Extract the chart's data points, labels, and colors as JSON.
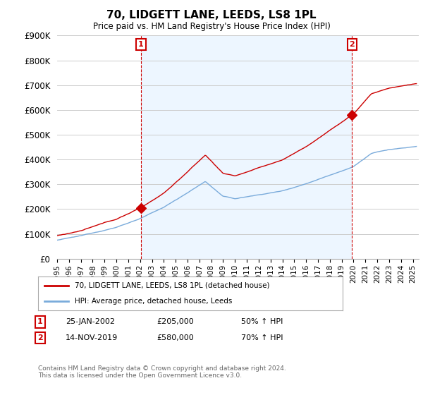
{
  "title": "70, LIDGETT LANE, LEEDS, LS8 1PL",
  "subtitle": "Price paid vs. HM Land Registry's House Price Index (HPI)",
  "ylabel_ticks": [
    "£0",
    "£100K",
    "£200K",
    "£300K",
    "£400K",
    "£500K",
    "£600K",
    "£700K",
    "£800K",
    "£900K"
  ],
  "ylim": [
    0,
    900000
  ],
  "xlim_start": 1995.0,
  "xlim_end": 2025.5,
  "sale1": {
    "date_num": 2002.07,
    "price": 205000,
    "label": "1",
    "date_str": "25-JAN-2002",
    "price_str": "£205,000",
    "pct_str": "50% ↑ HPI"
  },
  "sale2": {
    "date_num": 2019.87,
    "price": 580000,
    "label": "2",
    "date_str": "14-NOV-2019",
    "price_str": "£580,000",
    "pct_str": "70% ↑ HPI"
  },
  "line_color_property": "#cc0000",
  "line_color_hpi": "#7aabdb",
  "legend_label_property": "70, LIDGETT LANE, LEEDS, LS8 1PL (detached house)",
  "legend_label_hpi": "HPI: Average price, detached house, Leeds",
  "footnote": "Contains HM Land Registry data © Crown copyright and database right 2024.\nThis data is licensed under the Open Government Licence v3.0.",
  "grid_color": "#cccccc",
  "bg_fill_color": "#ddeeff",
  "background_color": "#ffffff"
}
